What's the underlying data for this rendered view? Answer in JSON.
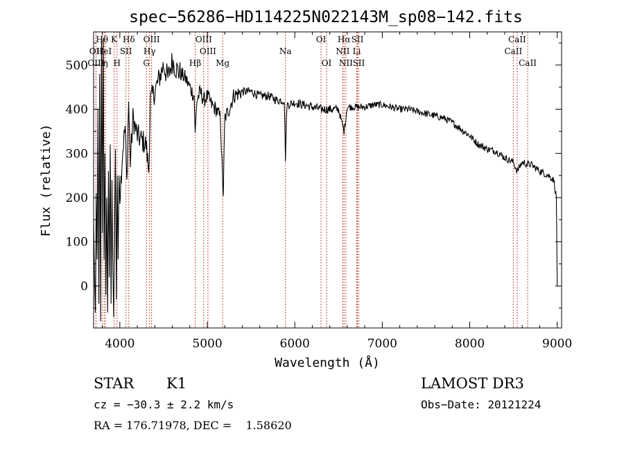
{
  "chart_data": {
    "type": "line",
    "title": "spec−56286−HD114225N022143M_sp08−142.fits",
    "xlabel": "Wavelength (Å)",
    "ylabel": "Flux (relative)",
    "xlim": [
      3700,
      9050
    ],
    "ylim": [
      -95,
      575
    ],
    "xticks": [
      4000,
      5000,
      6000,
      7000,
      8000,
      9000
    ],
    "yticks": [
      0,
      100,
      200,
      300,
      400,
      500
    ],
    "grid": false,
    "spectrum_anchors": [
      [
        3700,
        150
      ],
      [
        3710,
        20
      ],
      [
        3720,
        -60
      ],
      [
        3730,
        210
      ],
      [
        3740,
        60
      ],
      [
        3750,
        400
      ],
      [
        3760,
        -40
      ],
      [
        3770,
        480
      ],
      [
        3780,
        -80
      ],
      [
        3790,
        560
      ],
      [
        3800,
        120
      ],
      [
        3810,
        560
      ],
      [
        3820,
        60
      ],
      [
        3830,
        300
      ],
      [
        3840,
        -20
      ],
      [
        3850,
        200
      ],
      [
        3860,
        -60
      ],
      [
        3870,
        260
      ],
      [
        3880,
        20
      ],
      [
        3890,
        320
      ],
      [
        3900,
        -40
      ],
      [
        3910,
        240
      ],
      [
        3920,
        40
      ],
      [
        3930,
        -70
      ],
      [
        3940,
        130
      ],
      [
        3950,
        310
      ],
      [
        3960,
        -30
      ],
      [
        3970,
        250
      ],
      [
        3980,
        60
      ],
      [
        3990,
        250
      ],
      [
        4000,
        200
      ],
      [
        4030,
        300
      ],
      [
        4060,
        360
      ],
      [
        4080,
        230
      ],
      [
        4100,
        420
      ],
      [
        4120,
        280
      ],
      [
        4150,
        380
      ],
      [
        4200,
        340
      ],
      [
        4250,
        330
      ],
      [
        4300,
        320
      ],
      [
        4330,
        260
      ],
      [
        4350,
        420
      ],
      [
        4400,
        440
      ],
      [
        4450,
        470
      ],
      [
        4500,
        500
      ],
      [
        4550,
        470
      ],
      [
        4600,
        510
      ],
      [
        4650,
        490
      ],
      [
        4700,
        480
      ],
      [
        4750,
        470
      ],
      [
        4800,
        450
      ],
      [
        4850,
        430
      ],
      [
        4861,
        340
      ],
      [
        4880,
        420
      ],
      [
        4920,
        440
      ],
      [
        4960,
        420
      ],
      [
        5000,
        430
      ],
      [
        5050,
        410
      ],
      [
        5100,
        400
      ],
      [
        5150,
        380
      ],
      [
        5172,
        250
      ],
      [
        5183,
        210
      ],
      [
        5200,
        380
      ],
      [
        5250,
        400
      ],
      [
        5300,
        430
      ],
      [
        5400,
        440
      ],
      [
        5500,
        440
      ],
      [
        5600,
        430
      ],
      [
        5700,
        430
      ],
      [
        5800,
        420
      ],
      [
        5880,
        420
      ],
      [
        5893,
        290
      ],
      [
        5910,
        410
      ],
      [
        6000,
        415
      ],
      [
        6100,
        410
      ],
      [
        6200,
        405
      ],
      [
        6300,
        400
      ],
      [
        6400,
        400
      ],
      [
        6500,
        400
      ],
      [
        6563,
        350
      ],
      [
        6600,
        405
      ],
      [
        6700,
        405
      ],
      [
        6800,
        405
      ],
      [
        6900,
        410
      ],
      [
        7000,
        410
      ],
      [
        7100,
        405
      ],
      [
        7200,
        400
      ],
      [
        7300,
        400
      ],
      [
        7400,
        395
      ],
      [
        7500,
        390
      ],
      [
        7600,
        385
      ],
      [
        7700,
        380
      ],
      [
        7800,
        370
      ],
      [
        7900,
        355
      ],
      [
        8000,
        340
      ],
      [
        8100,
        320
      ],
      [
        8200,
        310
      ],
      [
        8300,
        305
      ],
      [
        8400,
        290
      ],
      [
        8498,
        280
      ],
      [
        8542,
        260
      ],
      [
        8600,
        280
      ],
      [
        8662,
        275
      ],
      [
        8700,
        275
      ],
      [
        8800,
        260
      ],
      [
        8900,
        250
      ],
      [
        8960,
        240
      ],
      [
        8990,
        200
      ],
      [
        9000,
        0
      ]
    ],
    "line_markers": [
      {
        "label": "Hθ",
        "x": 3797,
        "row": 1
      },
      {
        "label": "OII",
        "x": 3727,
        "row": 2
      },
      {
        "label": "OIII",
        "x": 3727,
        "row": 3
      },
      {
        "label": "HeI",
        "x": 3820,
        "row": 2
      },
      {
        "label": "η",
        "x": 3835,
        "row": 3
      },
      {
        "label": "K",
        "x": 3934,
        "row": 1
      },
      {
        "label": "SII",
        "x": 4070,
        "row": 2
      },
      {
        "label": "H",
        "x": 3968,
        "row": 3
      },
      {
        "label": "Hδ",
        "x": 4102,
        "row": 1
      },
      {
        "label": "OIII",
        "x": 4363,
        "row": 1
      },
      {
        "label": "Hγ",
        "x": 4340,
        "row": 2
      },
      {
        "label": "G",
        "x": 4304,
        "row": 3
      },
      {
        "label": "Hβ",
        "x": 4861,
        "row": 3
      },
      {
        "label": "OIII",
        "x": 4959,
        "row": 1
      },
      {
        "label": "OIII",
        "x": 5007,
        "row": 2
      },
      {
        "label": "Mg",
        "x": 5175,
        "row": 3
      },
      {
        "label": "Na",
        "x": 5893,
        "row": 2
      },
      {
        "label": "OI",
        "x": 6300,
        "row": 1
      },
      {
        "label": "OI",
        "x": 6363,
        "row": 3
      },
      {
        "label": "Hα",
        "x": 6563,
        "row": 1
      },
      {
        "label": "SII",
        "x": 6716,
        "row": 1
      },
      {
        "label": "NII",
        "x": 6548,
        "row": 2
      },
      {
        "label": "Li",
        "x": 6708,
        "row": 2
      },
      {
        "label": "NII",
        "x": 6584,
        "row": 3
      },
      {
        "label": "SII",
        "x": 6731,
        "row": 3
      },
      {
        "label": "CaII",
        "x": 8542,
        "row": 1
      },
      {
        "label": "CaII",
        "x": 8498,
        "row": 2
      },
      {
        "label": "CaII",
        "x": 8662,
        "row": 3
      }
    ]
  },
  "info": {
    "class": "STAR",
    "subclass": "K1",
    "survey": "LAMOST DR3",
    "cz": "cz = −30.3 ± 2.2 km/s",
    "obs_date": "Obs−Date: 20121224",
    "radec": "RA = 176.71978, DEC =    1.58620"
  }
}
